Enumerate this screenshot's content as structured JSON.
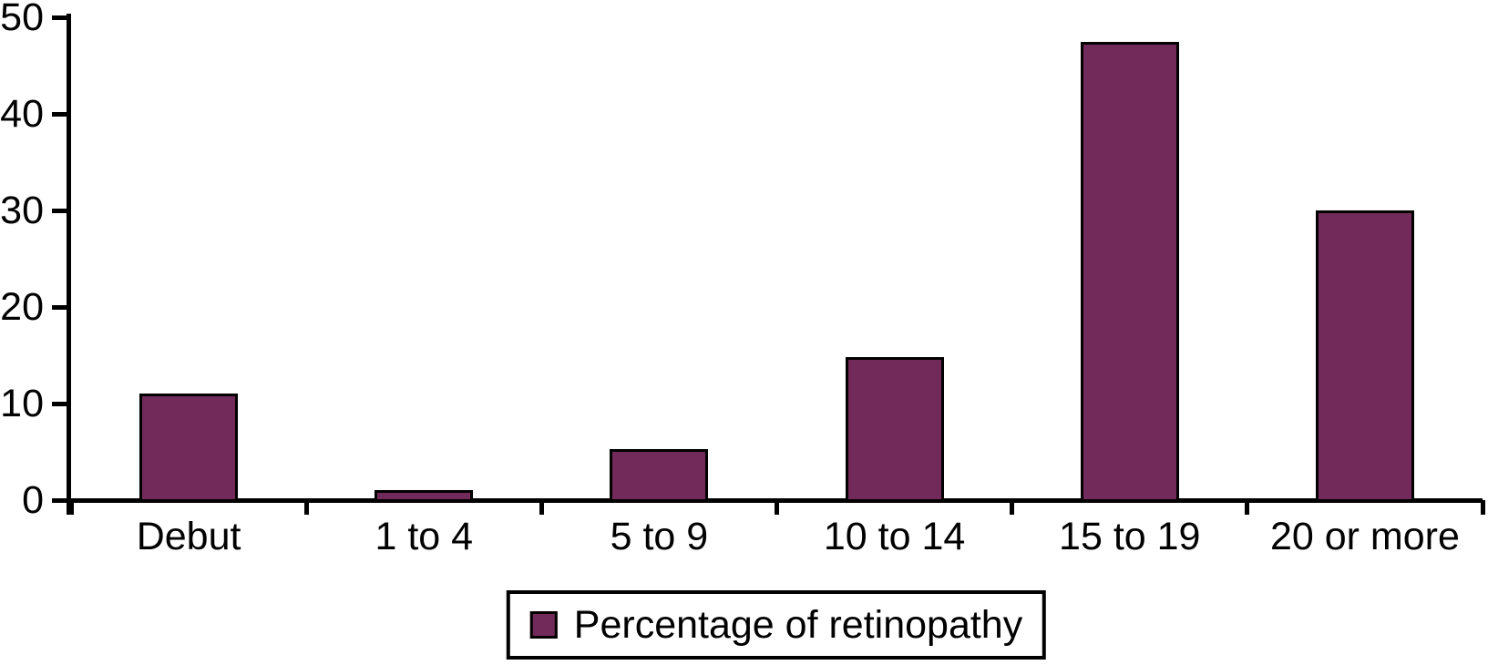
{
  "chart_data": {
    "type": "bar",
    "title": "",
    "xlabel": "",
    "ylabel": "",
    "categories": [
      "Debut",
      "1 to 4",
      "5 to 9",
      "10 to 14",
      "15 to 19",
      "20 or more"
    ],
    "values": [
      11,
      1,
      5.3,
      14.8,
      47.5,
      30
    ],
    "series_name": "Percentage of retinopathy",
    "ylim": [
      0,
      50
    ],
    "yticks": [
      0,
      10,
      20,
      30,
      40,
      50
    ],
    "grid": false,
    "legend_position": "bottom-center",
    "bar_color": "#722a5a",
    "bar_border_color": "#000000",
    "axis_color": "#000000",
    "background_color": "#ffffff"
  },
  "legend": {
    "label": "Percentage of retinopathy",
    "swatch_icon": "filled-square-icon"
  }
}
